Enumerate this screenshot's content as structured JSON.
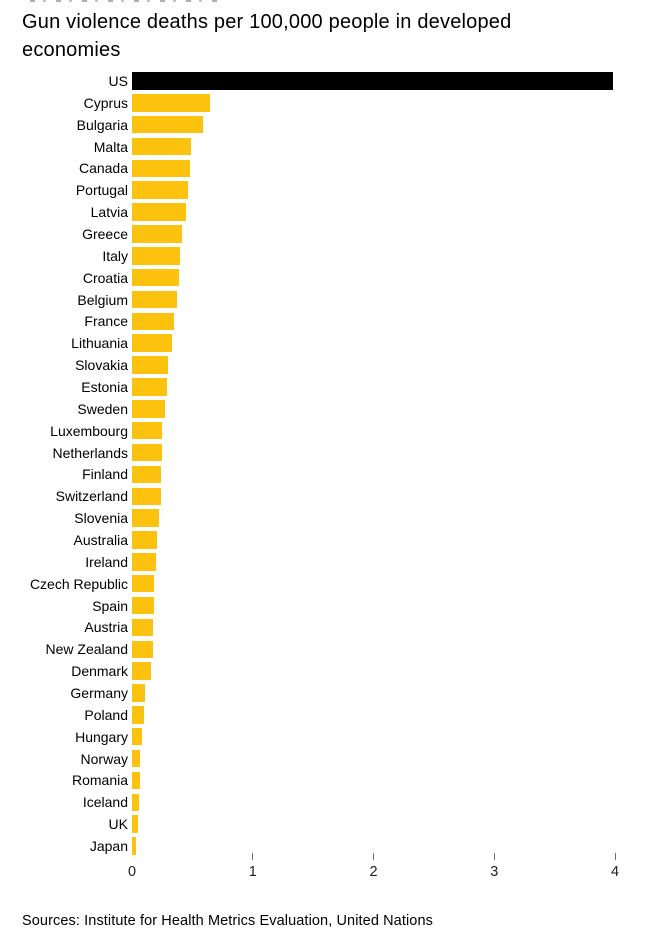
{
  "page": {
    "title": "Gun violence deaths per 100,000 people in developed economies",
    "sources": "Sources: Institute for Health Metrics Evaluation, United Nations"
  },
  "colors": {
    "bar_default": "#fcc20d",
    "bar_highlight": "#000000",
    "text": "#000000",
    "tick": "#6f6f6f"
  },
  "chart_data": {
    "type": "bar",
    "orientation": "horizontal",
    "title": "Gun violence deaths per 100,000 people in developed economies",
    "xlabel": "",
    "ylabel": "",
    "xlim": [
      0,
      4
    ],
    "x_ticks": [
      0,
      1,
      2,
      3,
      4
    ],
    "grid": false,
    "legend": false,
    "highlight_category": "US",
    "categories": [
      "US",
      "Cyprus",
      "Bulgaria",
      "Malta",
      "Canada",
      "Portugal",
      "Latvia",
      "Greece",
      "Italy",
      "Croatia",
      "Belgium",
      "France",
      "Lithuania",
      "Slovakia",
      "Estonia",
      "Sweden",
      "Luxembourg",
      "Netherlands",
      "Finland",
      "Switzerland",
      "Slovenia",
      "Australia",
      "Ireland",
      "Czech Republic",
      "Spain",
      "Austria",
      "New Zealand",
      "Denmark",
      "Germany",
      "Poland",
      "Hungary",
      "Norway",
      "Romania",
      "Iceland",
      "UK",
      "Japan"
    ],
    "values": [
      3.98,
      0.65,
      0.59,
      0.49,
      0.48,
      0.46,
      0.45,
      0.41,
      0.4,
      0.39,
      0.37,
      0.35,
      0.33,
      0.3,
      0.29,
      0.27,
      0.25,
      0.25,
      0.24,
      0.24,
      0.22,
      0.21,
      0.2,
      0.18,
      0.18,
      0.17,
      0.17,
      0.16,
      0.11,
      0.1,
      0.08,
      0.07,
      0.07,
      0.06,
      0.05,
      0.03
    ]
  }
}
